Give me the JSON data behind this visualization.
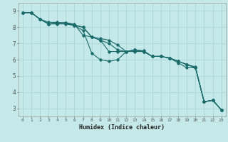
{
  "title": "",
  "xlabel": "Humidex (Indice chaleur)",
  "ylabel": "",
  "background_color": "#c5e8e8",
  "grid_color": "#aad4d4",
  "line_color": "#1a6b6b",
  "xlim": [
    -0.5,
    23.5
  ],
  "ylim": [
    2.5,
    9.5
  ],
  "xticks": [
    0,
    1,
    2,
    3,
    4,
    5,
    6,
    7,
    8,
    9,
    10,
    11,
    12,
    13,
    14,
    15,
    16,
    17,
    18,
    19,
    20,
    21,
    22,
    23
  ],
  "yticks": [
    3,
    4,
    5,
    6,
    7,
    8,
    9
  ],
  "lines": [
    {
      "x": [
        0,
        1,
        2,
        3,
        4,
        5,
        6,
        7,
        8,
        9,
        10,
        11,
        12,
        13,
        14,
        15,
        16,
        17,
        18,
        19,
        20,
        21,
        22,
        23
      ],
      "y": [
        8.9,
        8.9,
        8.5,
        8.2,
        8.2,
        8.2,
        8.1,
        7.8,
        6.4,
        6.0,
        5.9,
        6.0,
        6.5,
        6.6,
        6.5,
        6.2,
        6.2,
        6.1,
        5.8,
        5.5,
        5.5,
        3.4,
        3.5,
        2.9
      ]
    },
    {
      "x": [
        0,
        1,
        2,
        3,
        4,
        5,
        6,
        7,
        8,
        9,
        10,
        11,
        12,
        13,
        14,
        15,
        16,
        17,
        18,
        19,
        20,
        21,
        22,
        23
      ],
      "y": [
        8.9,
        8.9,
        8.5,
        8.2,
        8.25,
        8.28,
        8.18,
        7.5,
        7.4,
        7.3,
        7.2,
        6.9,
        6.5,
        6.6,
        6.5,
        6.2,
        6.2,
        6.1,
        5.9,
        5.7,
        5.5,
        3.4,
        3.5,
        2.9
      ]
    },
    {
      "x": [
        0,
        1,
        2,
        3,
        4,
        5,
        6,
        7,
        8,
        9,
        10,
        11,
        12,
        13,
        14,
        15,
        16,
        17,
        18,
        19,
        20,
        21,
        22,
        23
      ],
      "y": [
        8.9,
        8.9,
        8.5,
        8.2,
        8.25,
        8.28,
        8.15,
        8.0,
        7.4,
        7.2,
        6.5,
        6.5,
        6.5,
        6.5,
        6.5,
        6.2,
        6.2,
        6.1,
        5.9,
        5.7,
        5.5,
        3.4,
        3.5,
        2.9
      ]
    },
    {
      "x": [
        0,
        1,
        2,
        3,
        4,
        5,
        6,
        7,
        8,
        9,
        10,
        11,
        12,
        13,
        14,
        15,
        16,
        17,
        18,
        19,
        20,
        21,
        22,
        23
      ],
      "y": [
        8.9,
        8.9,
        8.5,
        8.3,
        8.3,
        8.25,
        8.1,
        8.0,
        7.4,
        7.2,
        7.0,
        6.6,
        6.5,
        6.6,
        6.55,
        6.2,
        6.2,
        6.1,
        5.9,
        5.7,
        5.55,
        3.4,
        3.5,
        2.9
      ]
    }
  ]
}
